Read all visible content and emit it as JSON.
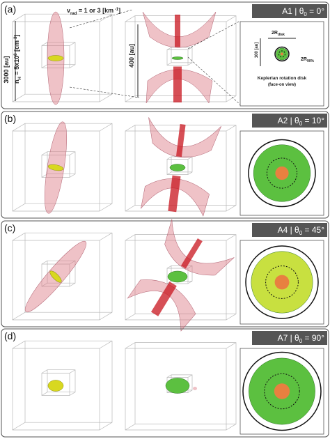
{
  "panels": [
    {
      "label": "(a)",
      "tag": {
        "prefix": "A1 | θ",
        "sub": "0",
        "suffix": " = 0°"
      }
    },
    {
      "label": "(b)",
      "tag": {
        "prefix": "A2 | θ",
        "sub": "0",
        "suffix": " = 10°"
      }
    },
    {
      "label": "(c)",
      "tag": {
        "prefix": "A4 | θ",
        "sub": "0",
        "suffix": " = 45°"
      }
    },
    {
      "label": "(d)",
      "tag": {
        "prefix": "A7 | θ",
        "sub": "0",
        "suffix": " = 90°"
      }
    }
  ],
  "annotations": {
    "vrad": {
      "main": "v",
      "sub": "rad",
      "rest": " = 1 or 3 [km",
      "sup": " -1",
      "end": "]"
    },
    "nh": {
      "main": "n",
      "sub": "H",
      "rest": " = 5x10",
      "sup": "8",
      "end": " [cm",
      "sup2": "-3",
      "end2": "]"
    },
    "size_left": "3000 [au]",
    "size_mid": "400 [au]",
    "size_right": "100 [au]",
    "rdisk": {
      "main": "2R",
      "sub": "disk"
    },
    "r90": {
      "main": "2R",
      "sub": "90%"
    },
    "inset_title": "Keplerian rotation disk",
    "inset_sub": "(face-on view)"
  }
}
